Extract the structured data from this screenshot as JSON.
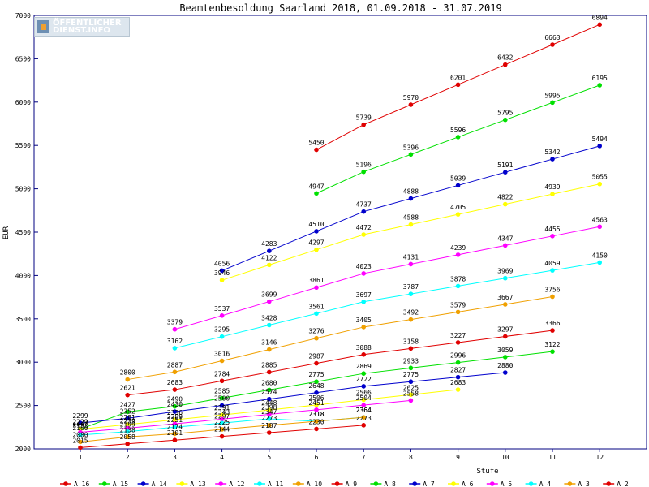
{
  "chart_data": {
    "type": "line",
    "title": "Beamtenbesoldung Saarland 2018, 01.09.2018 - 31.07.2019",
    "xlabel": "Stufe",
    "ylabel": "EUR",
    "xlim": [
      0,
      12.5
    ],
    "ylim": [
      2000,
      7000
    ],
    "x_ticks": [
      1,
      2,
      3,
      4,
      5,
      6,
      7,
      8,
      9,
      10,
      11,
      12
    ],
    "y_ticks": [
      2000,
      2500,
      3000,
      3500,
      4000,
      4500,
      5000,
      5500,
      6000,
      6500,
      7000
    ],
    "grid": false,
    "legend_position": "bottom",
    "series": [
      {
        "name": "A_16",
        "color": "#e00000",
        "x": [
          6,
          7,
          8,
          9,
          10,
          11,
          12
        ],
        "values": [
          5450,
          5739,
          5970,
          6201,
          6432,
          6663,
          6894
        ]
      },
      {
        "name": "A_15",
        "color": "#00e000",
        "x": [
          6,
          7,
          8,
          9,
          10,
          11,
          12
        ],
        "values": [
          4947,
          5196,
          5396,
          5596,
          5795,
          5995,
          6195
        ]
      },
      {
        "name": "A_14",
        "color": "#0000cc",
        "x": [
          4,
          5,
          6,
          7,
          8,
          9,
          10,
          11,
          12
        ],
        "values": [
          4056,
          4283,
          4510,
          4737,
          4888,
          5039,
          5191,
          5342,
          5494
        ]
      },
      {
        "name": "A_13",
        "color": "#ffff00",
        "x": [
          4,
          5,
          6,
          7,
          8,
          9,
          10,
          11,
          12
        ],
        "values": [
          3946,
          4122,
          4297,
          4472,
          4588,
          4705,
          4822,
          4939,
          5055
        ]
      },
      {
        "name": "A_12",
        "color": "#ff00ff",
        "x": [
          3,
          4,
          5,
          6,
          7,
          8,
          9,
          10,
          11,
          12
        ],
        "values": [
          3379,
          3537,
          3699,
          3861,
          4023,
          4131,
          4239,
          4347,
          4455,
          4563
        ]
      },
      {
        "name": "A_11",
        "color": "#00ffff",
        "x": [
          3,
          4,
          5,
          6,
          7,
          8,
          9,
          10,
          11,
          12
        ],
        "values": [
          3162,
          3295,
          3428,
          3561,
          3697,
          3787,
          3878,
          3969,
          4059,
          4150
        ]
      },
      {
        "name": "A_10",
        "color": "#f0a000",
        "x": [
          2,
          3,
          4,
          5,
          6,
          7,
          8,
          9,
          10,
          11
        ],
        "values": [
          2800,
          2887,
          3016,
          3146,
          3276,
          3405,
          3492,
          3579,
          3667,
          3756
        ]
      },
      {
        "name": "A_9",
        "color": "#e00000",
        "x": [
          2,
          3,
          4,
          5,
          6,
          7,
          8,
          9,
          10,
          11
        ],
        "values": [
          2621,
          2683,
          2784,
          2885,
          2987,
          3088,
          3158,
          3227,
          3297,
          3366
        ]
      },
      {
        "name": "A_8",
        "color": "#00e000",
        "x": [
          1,
          2,
          3,
          4,
          5,
          6,
          7,
          8,
          9,
          10,
          11
        ],
        "values": [
          2229,
          2427,
          2490,
          2585,
          2680,
          2775,
          2869,
          2933,
          2996,
          3059,
          3122
        ]
      },
      {
        "name": "A_7",
        "color": "#0000cc",
        "x": [
          1,
          2,
          3,
          4,
          5,
          6,
          7,
          8,
          9,
          10
        ],
        "values": [
          2299,
          2352,
          2430,
          2500,
          2574,
          2648,
          2722,
          2775,
          2827,
          2880
        ]
      },
      {
        "name": "A_6",
        "color": "#ffff00",
        "x": [
          1,
          2,
          3,
          4,
          5,
          6,
          7,
          8,
          9
        ],
        "values": [
          2227,
          2281,
          2336,
          2391,
          2448,
          2506,
          2566,
          2625,
          2683
        ]
      },
      {
        "name": "A_5",
        "color": "#ff00ff",
        "x": [
          1,
          2,
          3,
          4,
          5,
          6,
          7,
          8
        ],
        "values": [
          2192,
          2239,
          2289,
          2343,
          2398,
          2451,
          2504,
          2558
        ]
      },
      {
        "name": "A_4",
        "color": "#00ffff",
        "x": [
          1,
          2,
          3,
          4,
          5,
          6,
          7
        ],
        "values": [
          2160,
          2199,
          2251,
          2297,
          2347,
          2318,
          2364
        ]
      },
      {
        "name": "A_3",
        "color": "#f0a000",
        "x": [
          1,
          2,
          3,
          4,
          5,
          6,
          7
        ],
        "values": [
          2080,
          2138,
          2174,
          2225,
          2273,
          2318,
          2364
        ]
      },
      {
        "name": "A_2",
        "color": "#e00000",
        "x": [
          1,
          2,
          3,
          4,
          5,
          6,
          7
        ],
        "values": [
          2015,
          2058,
          2101,
          2144,
          2187,
          2230,
          2273
        ]
      }
    ]
  },
  "logo": {
    "line1": "ÖFFENTLICHER",
    "line2": "DIENST.INFO"
  }
}
